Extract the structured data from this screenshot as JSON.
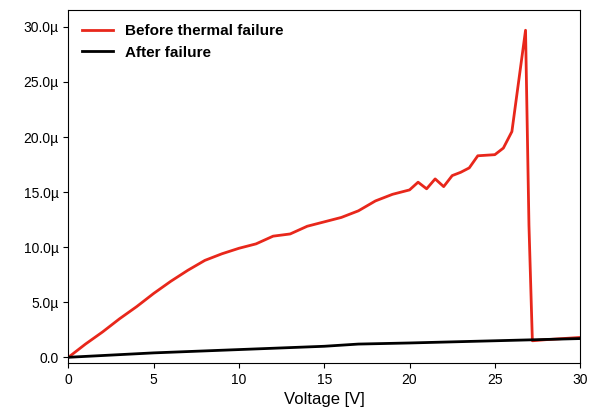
{
  "chart_data": {
    "type": "line",
    "x_label": "Voltage [V]",
    "xlim": [
      0,
      30
    ],
    "xticks": [
      0,
      5,
      10,
      15,
      20,
      25,
      30
    ],
    "ylim": [
      -5e-07,
      3.15e-05
    ],
    "yticks": [
      {
        "value": 0,
        "label": "0.0"
      },
      {
        "value": 5e-06,
        "label": "5.0µ"
      },
      {
        "value": 1e-05,
        "label": "10.0µ"
      },
      {
        "value": 1.5e-05,
        "label": "15.0µ"
      },
      {
        "value": 2e-05,
        "label": "20.0µ"
      },
      {
        "value": 2.5e-05,
        "label": "25.0µ"
      },
      {
        "value": 3e-05,
        "label": "30.0µ"
      }
    ],
    "legend": "upper left",
    "series": [
      {
        "name": "Before thermal failure",
        "color": "#e8271b",
        "x": [
          0,
          1,
          2,
          3,
          4,
          5,
          6,
          7,
          8,
          9,
          10,
          11,
          12,
          13,
          14,
          15,
          16,
          17,
          18,
          19,
          20,
          20.5,
          21,
          21.5,
          22,
          22.5,
          23,
          23.5,
          24,
          25,
          25.5,
          26,
          26.8,
          27,
          27.2,
          28,
          29,
          30
        ],
        "values": [
          0,
          1.2e-06,
          2.3e-06,
          3.5e-06,
          4.6e-06,
          5.8e-06,
          6.9e-06,
          7.9e-06,
          8.8e-06,
          9.4e-06,
          9.9e-06,
          1.03e-05,
          1.1e-05,
          1.12e-05,
          1.19e-05,
          1.23e-05,
          1.27e-05,
          1.33e-05,
          1.42e-05,
          1.48e-05,
          1.52e-05,
          1.59e-05,
          1.53e-05,
          1.62e-05,
          1.55e-05,
          1.65e-05,
          1.68e-05,
          1.72e-05,
          1.83e-05,
          1.84e-05,
          1.9e-05,
          2.05e-05,
          2.97e-05,
          1.2e-05,
          1.5e-06,
          1.6e-06,
          1.7e-06,
          1.8e-06
        ]
      },
      {
        "name": "After failure",
        "color": "#000000",
        "x": [
          0,
          5,
          10,
          15,
          17,
          20,
          25,
          30
        ],
        "values": [
          0,
          4e-07,
          7e-07,
          1e-06,
          1.2e-06,
          1.3e-06,
          1.5e-06,
          1.7e-06
        ]
      }
    ]
  }
}
